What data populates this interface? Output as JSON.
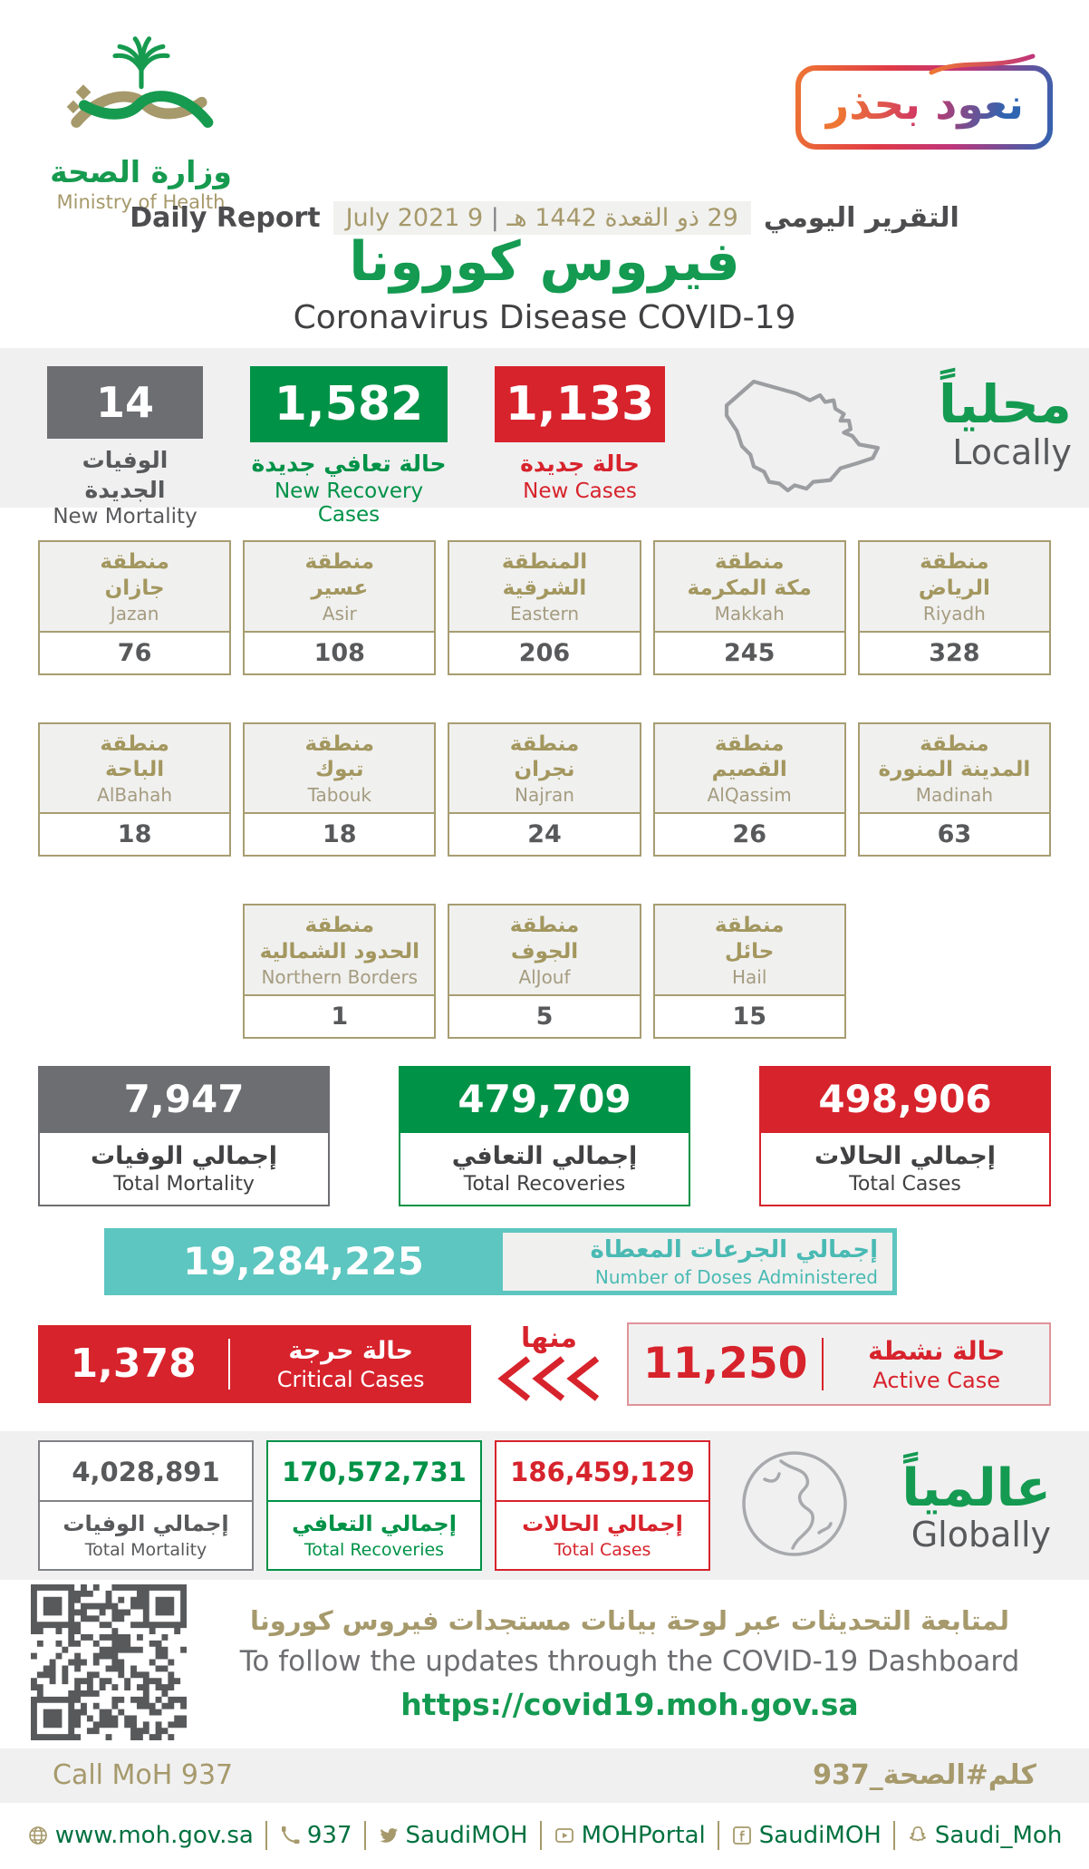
{
  "colors": {
    "green_text": "#149a51",
    "green_box": "#009247",
    "red": "#d7232c",
    "gray_box": "#6d6e71",
    "gold": "#a6996b",
    "teal": "#5dc6c0",
    "band_gray": "#f0f0f1",
    "dark_text": "#414042",
    "footer_green": "#00713f"
  },
  "header": {
    "logo_ar": "وزارة الصحة",
    "logo_en": "Ministry of Health",
    "badge": "نعود بحذر",
    "report_label_en": "Daily Report",
    "date_gregorian": "9 July 2021",
    "date_hijri": "29 ذو القعدة 1442 هـ",
    "report_label_ar": "التقرير اليومي",
    "title_ar": "فيروس كورونا",
    "title_en": "Coronavirus Disease COVID-19"
  },
  "locally": {
    "label_ar": "محلياً",
    "label_en": "Locally",
    "new_mortality": {
      "value": "14",
      "label_ar": "الوفيات الجديدة",
      "label_en": "New Mortality"
    },
    "new_recoveries": {
      "value": "1,582",
      "label_ar": "حالة تعافي جديدة",
      "label_en": "New Recovery Cases"
    },
    "new_cases": {
      "value": "1,133",
      "label_ar": "حالة جديدة",
      "label_en": "New Cases"
    }
  },
  "regions": [
    {
      "ar1": "منطقة",
      "ar2": "جازان",
      "en": "Jazan",
      "value": "76"
    },
    {
      "ar1": "منطقة",
      "ar2": "عسير",
      "en": "Asir",
      "value": "108"
    },
    {
      "ar1": "المنطقة",
      "ar2": "الشرقية",
      "en": "Eastern",
      "value": "206"
    },
    {
      "ar1": "منطقة",
      "ar2": "مكة المكرمة",
      "en": "Makkah",
      "value": "245"
    },
    {
      "ar1": "منطقة",
      "ar2": "الرياض",
      "en": "Riyadh",
      "value": "328"
    },
    {
      "ar1": "منطقة",
      "ar2": "الباحة",
      "en": "AlBahah",
      "value": "18"
    },
    {
      "ar1": "منطقة",
      "ar2": "تبوك",
      "en": "Tabouk",
      "value": "18"
    },
    {
      "ar1": "منطقة",
      "ar2": "نجران",
      "en": "Najran",
      "value": "24"
    },
    {
      "ar1": "منطقة",
      "ar2": "القصيم",
      "en": "AlQassim",
      "value": "26"
    },
    {
      "ar1": "منطقة",
      "ar2": "المدينة المنورة",
      "en": "Madinah",
      "value": "63"
    },
    {
      "ar1": "منطقة",
      "ar2": "الحدود الشمالية",
      "en": "Northern Borders",
      "value": "1"
    },
    {
      "ar1": "منطقة",
      "ar2": "الجوف",
      "en": "AlJouf",
      "value": "5"
    },
    {
      "ar1": "منطقة",
      "ar2": "حائل",
      "en": "Hail",
      "value": "15"
    }
  ],
  "totals": {
    "mortality": {
      "value": "7,947",
      "label_ar": "إجمالي الوفيات",
      "label_en": "Total Mortality"
    },
    "recoveries": {
      "value": "479,709",
      "label_ar": "إجمالي التعافي",
      "label_en": "Total Recoveries"
    },
    "cases": {
      "value": "498,906",
      "label_ar": "إجمالي الحالات",
      "label_en": "Total Cases"
    }
  },
  "doses": {
    "value": "19,284,225",
    "label_ar": "إجمالي الجرعات المعطاة",
    "label_en": "Number of Doses Administered"
  },
  "critical": {
    "value": "1,378",
    "label_ar": "حالة حرجة",
    "label_en": "Critical Cases"
  },
  "of_which": "منها",
  "active": {
    "value": "11,250",
    "label_ar": "حالة نشطة",
    "label_en": "Active Case"
  },
  "globally": {
    "label_ar": "عالمياً",
    "label_en": "Globally",
    "mortality": {
      "value": "4,028,891",
      "label_ar": "إجمالي الوفيات",
      "label_en": "Total Mortality"
    },
    "recoveries": {
      "value": "170,572,731",
      "label_ar": "إجمالي التعافي",
      "label_en": "Total Recoveries"
    },
    "cases": {
      "value": "186,459,129",
      "label_ar": "إجمالي الحالات",
      "label_en": "Total Cases"
    }
  },
  "dashboard": {
    "label_ar": "لمتابعة التحديثات عبر لوحة بيانات مستجدات فيروس كورونا",
    "label_en": "To follow the updates through the COVID-19 Dashboard",
    "url": "https://covid19.moh.gov.sa"
  },
  "call": {
    "en": "Call MoH 937",
    "ar": "كلم#الصحة_937"
  },
  "footer": [
    {
      "icon": "globe-icon",
      "text": "www.moh.gov.sa"
    },
    {
      "icon": "phone-icon",
      "text": "937"
    },
    {
      "icon": "twitter-icon",
      "text": "SaudiMOH"
    },
    {
      "icon": "youtube-icon",
      "text": "MOHPortal"
    },
    {
      "icon": "facebook-icon",
      "text": "SaudiMOH"
    },
    {
      "icon": "snapchat-icon",
      "text": "Saudi_Moh"
    }
  ]
}
